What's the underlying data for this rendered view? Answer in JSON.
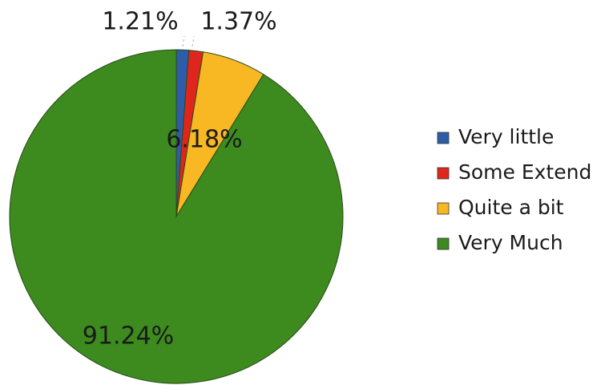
{
  "chart_data": {
    "type": "pie",
    "categories": [
      "Very little",
      "Some Extend",
      "Quite a bit",
      "Very Much"
    ],
    "values": [
      1.21,
      1.37,
      6.18,
      91.24
    ],
    "value_labels": [
      "1.21%",
      "1.37%",
      "6.18%",
      "91.24%"
    ],
    "colors": [
      "#2f5ca8",
      "#e0261c",
      "#f7b824",
      "#3d8a1f"
    ],
    "legend": "right"
  }
}
